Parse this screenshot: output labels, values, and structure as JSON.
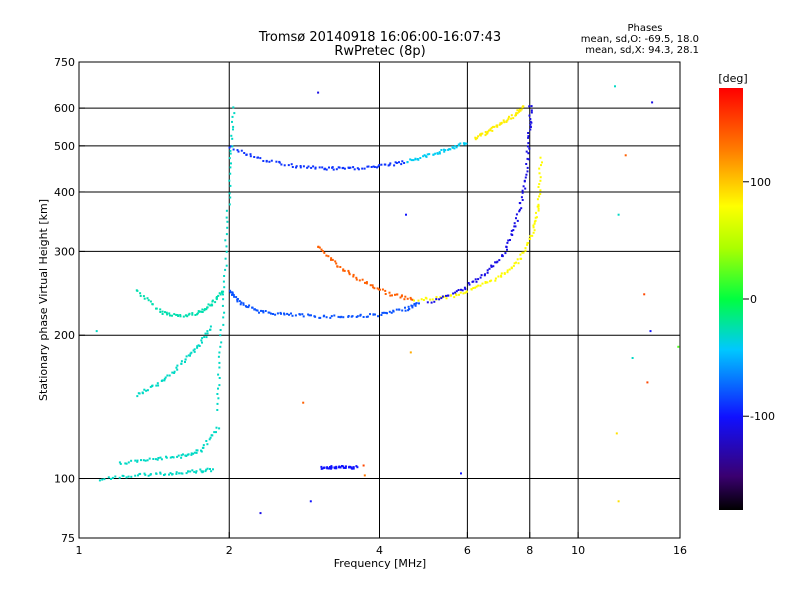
{
  "header": {
    "title_line1": "Tromsø 20140918 16:06:00-16:07:43",
    "title_line2": "RwPretec (8p)"
  },
  "phases_box": {
    "title": "Phases",
    "line1": "mean, sd,O: -69.5, 18.0",
    "line2": "mean, sd,X:  94.3, 28.1"
  },
  "colorbar": {
    "unit_label": "[deg]",
    "ticks": [
      {
        "value": 100,
        "label": "100"
      },
      {
        "value": 0,
        "label": "0"
      },
      {
        "value": -100,
        "label": "-100"
      }
    ],
    "range": [
      -180,
      180
    ]
  },
  "chart_data": {
    "type": "scatter",
    "title": "Tromsø 20140918 16:06:00-16:07:43",
    "subtitle": "RwPretec (8p)",
    "xlabel": "Frequency [MHz]",
    "ylabel": "Stationary phase Virtual Height [km]",
    "xscale": "log",
    "yscale": "log",
    "xlim": [
      1,
      16
    ],
    "ylim": [
      75,
      750
    ],
    "x_ticks": [
      1,
      2,
      4,
      6,
      8,
      10,
      16
    ],
    "y_ticks": [
      75,
      100,
      200,
      300,
      400,
      500,
      600,
      750
    ],
    "grid_x": [
      2,
      4,
      6,
      8,
      10
    ],
    "grid_y": [
      100,
      200,
      300,
      400,
      500,
      600
    ],
    "color_by": "phase [deg]",
    "traces": [
      {
        "x": [
          1.3,
          1.45,
          1.6,
          1.75,
          1.85,
          1.95
        ],
        "y": [
          250,
          225,
          220,
          225,
          235,
          250
        ],
        "phase": -25
      },
      {
        "x": [
          2.0,
          2.1,
          2.3,
          2.6,
          3.0,
          3.5,
          4.0,
          4.5,
          4.8
        ],
        "y": [
          250,
          235,
          225,
          222,
          220,
          220,
          222,
          228,
          235
        ],
        "phase": -80
      },
      {
        "x": [
          3.0,
          3.3,
          3.7,
          4.2,
          4.7
        ],
        "y": [
          310,
          280,
          260,
          245,
          238
        ],
        "phase": 140
      },
      {
        "x": [
          4.7,
          5.5,
          6.2,
          7.0,
          7.6,
          8.1,
          8.3,
          8.4
        ],
        "y": [
          238,
          242,
          252,
          268,
          290,
          330,
          380,
          480
        ],
        "phase": 80
      },
      {
        "x": [
          5.0,
          5.8,
          6.5,
          7.1,
          7.5,
          7.8,
          7.95,
          8.0
        ],
        "y": [
          235,
          250,
          270,
          300,
          350,
          420,
          520,
          620
        ],
        "phase": -110
      },
      {
        "x": [
          2.0,
          2.3,
          2.7,
          3.1,
          3.5,
          4.0,
          4.5
        ],
        "y": [
          500,
          470,
          455,
          450,
          450,
          455,
          465
        ],
        "phase": -90
      },
      {
        "x": [
          4.5,
          5.0,
          5.5,
          6.0
        ],
        "y": [
          465,
          480,
          495,
          510
        ],
        "phase": -40
      },
      {
        "x": [
          6.2,
          6.6,
          7.0,
          7.4,
          7.8
        ],
        "y": [
          520,
          540,
          560,
          580,
          610
        ],
        "phase": 85
      },
      {
        "x": [
          1.88,
          1.92,
          1.96,
          2.0,
          2.04
        ],
        "y": [
          140,
          200,
          300,
          450,
          620
        ],
        "phase": -30
      },
      {
        "x": [
          1.2,
          1.4,
          1.6,
          1.75,
          1.9
        ],
        "y": [
          108,
          110,
          112,
          115,
          130
        ],
        "phase": -30
      },
      {
        "x": [
          1.1,
          1.3,
          1.5,
          1.7,
          1.85
        ],
        "y": [
          100,
          102,
          103,
          104,
          105
        ],
        "phase": -30
      },
      {
        "x": [
          1.3,
          1.45,
          1.6,
          1.72,
          1.85
        ],
        "y": [
          150,
          160,
          175,
          190,
          210
        ],
        "phase": -30
      },
      {
        "x": [
          3.05,
          3.2,
          3.4,
          3.6
        ],
        "y": [
          106,
          106,
          106,
          106
        ],
        "phase": -100
      }
    ],
    "isolated_points": [
      {
        "x": 1.08,
        "y": 205,
        "phase": -30
      },
      {
        "x": 2.3,
        "y": 85,
        "phase": -110
      },
      {
        "x": 2.9,
        "y": 90,
        "phase": -100
      },
      {
        "x": 3.0,
        "y": 650,
        "phase": -110
      },
      {
        "x": 3.7,
        "y": 107,
        "phase": 150
      },
      {
        "x": 3.72,
        "y": 102,
        "phase": 130
      },
      {
        "x": 11.8,
        "y": 670,
        "phase": -30
      },
      {
        "x": 12.4,
        "y": 480,
        "phase": 140
      },
      {
        "x": 12.0,
        "y": 360,
        "phase": -30
      },
      {
        "x": 14.0,
        "y": 620,
        "phase": -110
      },
      {
        "x": 13.9,
        "y": 205,
        "phase": -100
      },
      {
        "x": 13.5,
        "y": 245,
        "phase": 150
      },
      {
        "x": 15.8,
        "y": 190,
        "phase": 20
      },
      {
        "x": 12.8,
        "y": 180,
        "phase": -30
      },
      {
        "x": 12.0,
        "y": 90,
        "phase": 90
      },
      {
        "x": 11.9,
        "y": 125,
        "phase": 90
      },
      {
        "x": 13.7,
        "y": 160,
        "phase": 150
      },
      {
        "x": 4.5,
        "y": 360,
        "phase": -100
      },
      {
        "x": 4.6,
        "y": 185,
        "phase": 110
      },
      {
        "x": 5.8,
        "y": 103,
        "phase": -100
      },
      {
        "x": 2.8,
        "y": 145,
        "phase": 140
      }
    ]
  }
}
